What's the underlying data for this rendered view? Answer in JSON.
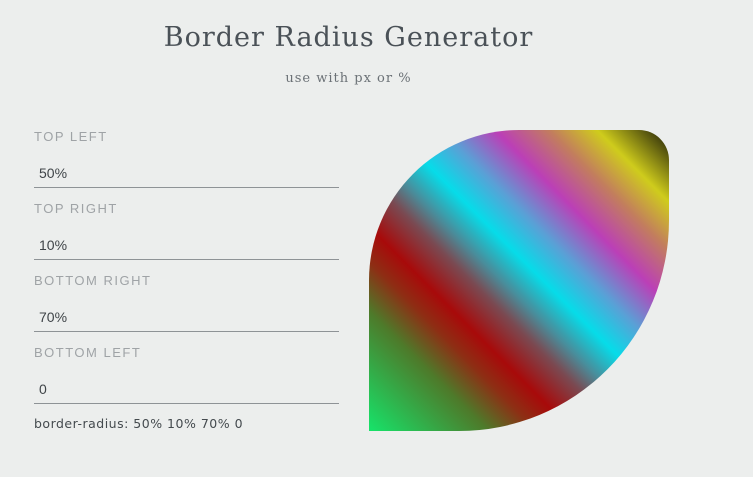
{
  "page": {
    "title": "Border Radius Generator",
    "subtitle": "use with px or %"
  },
  "fields": [
    {
      "label": "TOP LEFT",
      "value": "50%"
    },
    {
      "label": "TOP RIGHT",
      "value": "10%"
    },
    {
      "label": "BOTTOM RIGHT",
      "value": "70%"
    },
    {
      "label": "BOTTOM LEFT",
      "value": "0"
    }
  ],
  "output": {
    "text": "border-radius: 50% 10% 70% 0"
  },
  "preview": {
    "gradient_colors": [
      "#1b1a08",
      "#cfcc1c",
      "#bb3fb7",
      "#06dce9",
      "#a80a0a",
      "#16e46a"
    ]
  },
  "colors": {
    "background": "#eceeed",
    "title": "#4a5157",
    "label": "#9fa3a6",
    "underline": "#8e9396"
  }
}
